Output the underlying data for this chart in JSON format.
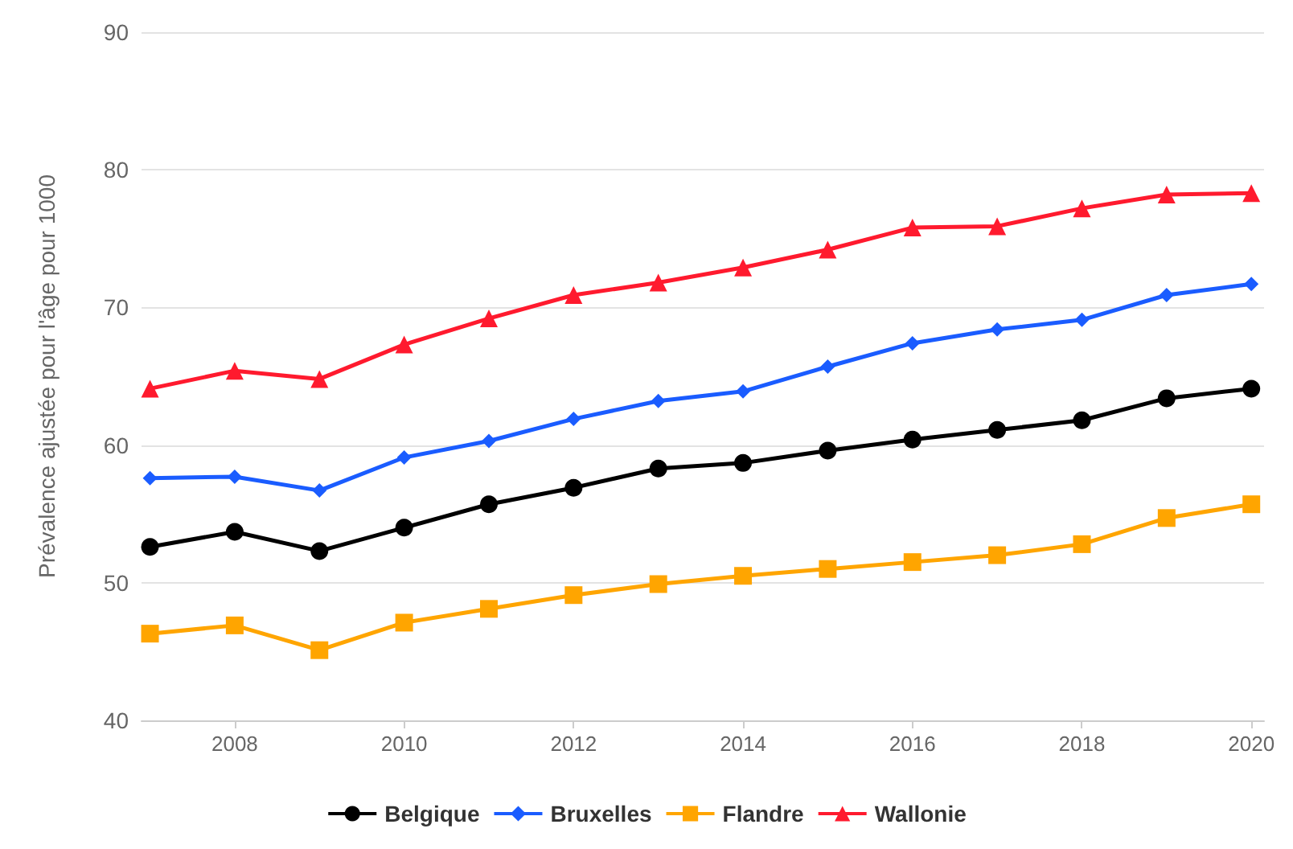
{
  "chart_data": {
    "type": "line",
    "ylabel": "Prévalence ajustée pour l'âge pour 1000",
    "x": [
      2007,
      2008,
      2009,
      2010,
      2011,
      2012,
      2013,
      2014,
      2015,
      2016,
      2017,
      2018,
      2019,
      2020
    ],
    "series": [
      {
        "name": "Belgique",
        "color": "#000000",
        "marker": "circle",
        "values": [
          52.6,
          53.7,
          52.3,
          54.0,
          55.7,
          56.9,
          58.3,
          58.7,
          59.6,
          60.4,
          61.1,
          61.8,
          63.4,
          64.1
        ]
      },
      {
        "name": "Bruxelles",
        "color": "#1a5cff",
        "marker": "diamond",
        "values": [
          57.6,
          57.7,
          56.7,
          59.1,
          60.3,
          61.9,
          63.2,
          63.9,
          65.7,
          67.4,
          68.4,
          69.1,
          70.9,
          71.7
        ]
      },
      {
        "name": "Flandre",
        "color": "#ffa500",
        "marker": "square",
        "values": [
          46.3,
          46.9,
          45.1,
          47.1,
          48.1,
          49.1,
          49.9,
          50.5,
          51.0,
          51.5,
          52.0,
          52.8,
          54.7,
          55.7
        ]
      },
      {
        "name": "Wallonie",
        "color": "#ff1a2e",
        "marker": "triangle",
        "values": [
          64.1,
          65.4,
          64.8,
          67.3,
          69.2,
          70.9,
          71.8,
          72.9,
          74.2,
          75.8,
          75.9,
          77.2,
          78.2,
          78.3
        ]
      }
    ],
    "xlim": [
      2006.9,
      2020.15
    ],
    "xticks": [
      2008,
      2010,
      2012,
      2014,
      2016,
      2018,
      2020
    ],
    "ylim": [
      40,
      90
    ],
    "yticks": [
      40,
      50,
      60,
      70,
      80,
      90
    ],
    "grid": "y",
    "legend": "bottom",
    "line_style": "solid"
  }
}
